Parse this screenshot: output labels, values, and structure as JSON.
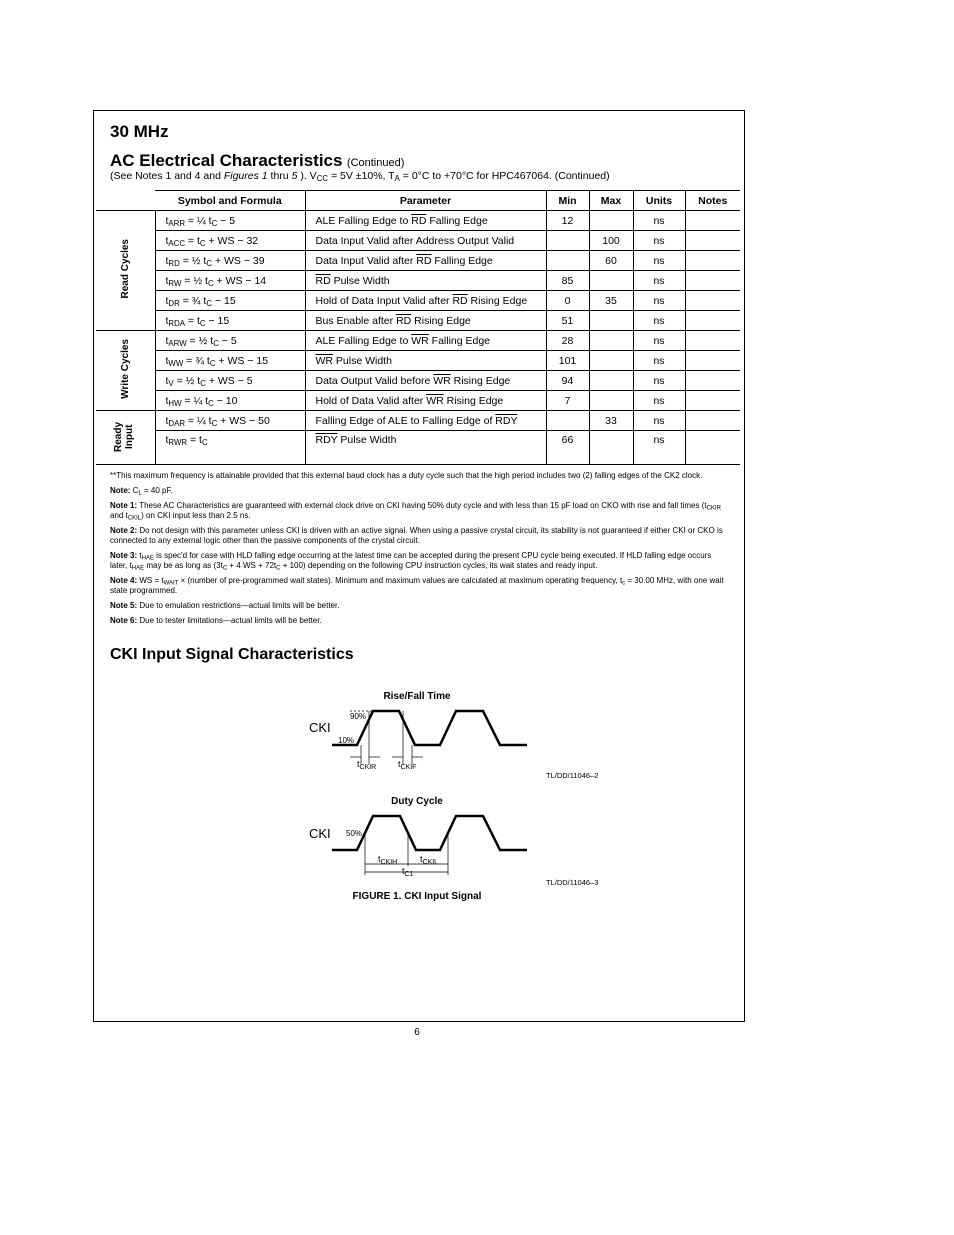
{
  "header": {
    "title": "30 MHz",
    "heading": "AC Electrical Characteristics",
    "continued": "(Continued)",
    "conditions": [
      "(See Notes 1 and 4 and ",
      {
        "i": "Figures 1"
      },
      " thru ",
      {
        "i": "5"
      },
      " ). V",
      {
        "sub": "CC"
      },
      " = 5V ±10%, T",
      {
        "sub": "A"
      },
      " = 0°C to +70°C for HPC467064. (Continued)"
    ]
  },
  "table": {
    "columns": [
      "Symbol and Formula",
      "Parameter",
      "Min",
      "Max",
      "Units",
      "Notes"
    ],
    "groups": [
      {
        "label": "Read Cycles",
        "rows": [
          {
            "symbol": [
              "t",
              {
                "sub": "ARR"
              },
              " = ¼ t",
              {
                "sub": "C"
              },
              " − 5"
            ],
            "parameter": [
              "ALE Falling Edge to ",
              {
                "over": "RD"
              },
              " Falling Edge"
            ],
            "min": 12,
            "units": "ns"
          },
          {
            "symbol": [
              "t",
              {
                "sub": "ACC"
              },
              " = t",
              {
                "sub": "C"
              },
              " + WS − 32"
            ],
            "parameter": [
              "Data Input Valid after Address Output Valid"
            ],
            "max": 100,
            "units": "ns"
          },
          {
            "symbol": [
              "t",
              {
                "sub": "RD"
              },
              " = ½ t",
              {
                "sub": "C"
              },
              " + WS − 39"
            ],
            "parameter": [
              "Data Input Valid after ",
              {
                "over": "RD"
              },
              " Falling Edge"
            ],
            "max": 60,
            "units": "ns"
          },
          {
            "symbol": [
              "t",
              {
                "sub": "RW"
              },
              " = ½ t",
              {
                "sub": "C"
              },
              " + WS − 14"
            ],
            "parameter": [
              {
                "over": "RD"
              },
              " Pulse Width"
            ],
            "min": 85,
            "units": "ns"
          },
          {
            "symbol": [
              "t",
              {
                "sub": "DR"
              },
              " = ¾ t",
              {
                "sub": "C"
              },
              " − 15"
            ],
            "parameter": [
              "Hold of Data Input Valid after ",
              {
                "over": "RD"
              },
              " Rising Edge"
            ],
            "min": 0,
            "max": 35,
            "units": "ns"
          },
          {
            "symbol": [
              "t",
              {
                "sub": "RDA"
              },
              " = t",
              {
                "sub": "C"
              },
              " − 15"
            ],
            "parameter": [
              "Bus Enable after ",
              {
                "over": "RD"
              },
              " Rising Edge"
            ],
            "min": 51,
            "units": "ns"
          }
        ]
      },
      {
        "label": "Write Cycles",
        "rows": [
          {
            "symbol": [
              "t",
              {
                "sub": "ARW"
              },
              " = ½ t",
              {
                "sub": "C"
              },
              " − 5"
            ],
            "parameter": [
              "ALE Falling Edge to ",
              {
                "over": "WR"
              },
              " Falling Edge"
            ],
            "min": 28,
            "units": "ns"
          },
          {
            "symbol": [
              "t",
              {
                "sub": "WW"
              },
              " = ¾ t",
              {
                "sub": "C"
              },
              " + WS − 15"
            ],
            "parameter": [
              {
                "over": "WR"
              },
              " Pulse Width"
            ],
            "min": 101,
            "units": "ns"
          },
          {
            "symbol": [
              "t",
              {
                "sub": "V"
              },
              " = ½ t",
              {
                "sub": "C"
              },
              " + WS − 5"
            ],
            "parameter": [
              "Data Output Valid before ",
              {
                "over": "WR"
              },
              " Rising Edge"
            ],
            "min": 94,
            "units": "ns"
          },
          {
            "symbol": [
              "t",
              {
                "sub": "HW"
              },
              " = ¼ t",
              {
                "sub": "C"
              },
              " − 10"
            ],
            "parameter": [
              "Hold of Data Valid after ",
              {
                "over": "WR"
              },
              " Rising Edge"
            ],
            "min": 7,
            "units": "ns"
          }
        ]
      },
      {
        "label": "Ready Input",
        "rows": [
          {
            "symbol": [
              "t",
              {
                "sub": "DAR"
              },
              " = ¼ t",
              {
                "sub": "C"
              },
              " + WS − 50"
            ],
            "parameter": [
              "Falling Edge of ALE to Falling Edge of ",
              {
                "over": "RDY"
              }
            ],
            "max": 33,
            "units": "ns"
          },
          {
            "symbol": [
              "t",
              {
                "sub": "RWR"
              },
              " = t",
              {
                "sub": "C"
              }
            ],
            "parameter": [
              {
                "over": "RDY"
              },
              " Pulse Width"
            ],
            "min": 66,
            "units": "ns"
          }
        ]
      }
    ]
  },
  "notes": [
    [
      "**This maximum frequency is attainable provided that this external baud clock has a duty cycle such that the high period includes two (2) falling edges of the CK2 clock."
    ],
    [
      {
        "b": "Note:"
      },
      " C",
      {
        "sub": "L"
      },
      " = 40 pF."
    ],
    [
      {
        "b": "Note 1:"
      },
      " These AC Characteristics are guaranteed with external clock drive on CKI having 50% duty cycle and with less than 15 pF load on CKO with rise and fall times (t",
      {
        "sub": "CKIR"
      },
      " and t",
      {
        "sub": "CKIL"
      },
      ") on CKI input less than 2.5 ns."
    ],
    [
      {
        "b": "Note 2:"
      },
      " Do not design with this parameter unless CKI is driven with an active signal. When using a passive crystal circuit, its stability is not guaranteed if either CKI or CKO is connected to any external logic other than the passive components of the crystal circuit."
    ],
    [
      {
        "b": "Note 3:"
      },
      " t",
      {
        "sub": "HAE"
      },
      " is spec'd for case with HLD falling edge occurring at the latest time can be accepted during the present CPU cycle being executed. If HLD falling edge occurs later, t",
      {
        "sub": "HAE"
      },
      " may be as long as (3t",
      {
        "sub": "C"
      },
      " + 4 WS + 72t",
      {
        "sub": "C"
      },
      " + 100) depending on the following CPU instruction cycles, its wait states and ready input."
    ],
    [
      {
        "b": "Note 4:"
      },
      " WS = t",
      {
        "sub": "WAIT"
      },
      " × (number of pre-programmed wait states). Minimum and maximum values are calculated at maximum operating frequency, t",
      {
        "sub": "c"
      },
      " = 30.00 MHz, with one wait state programmed."
    ],
    [
      {
        "b": "Note 5:"
      },
      " Due to emulation restrictions—actual limits will be better."
    ],
    [
      {
        "b": "Note 6:"
      },
      " Due to tester limitations—actual limits will be better."
    ]
  ],
  "section": {
    "title": "CKI Input Signal Characteristics"
  },
  "figure": {
    "rise_fall": {
      "title": "Rise/Fall Time",
      "signal": "CKI",
      "level_high": "90%",
      "level_low": "10%",
      "t_rise": {
        "t": "t",
        "sub": "CKIR"
      },
      "t_fall": {
        "t": "t",
        "sub": "CKIF"
      },
      "ref": "TL/DD/11046–2"
    },
    "duty": {
      "title": "Duty Cycle",
      "signal": "CKI",
      "level": "50%",
      "t_high": {
        "t": "t",
        "sub": "CKIH"
      },
      "t_low": {
        "t": "t",
        "sub": "CKIL"
      },
      "t_cycle": {
        "t": "t",
        "sub": "C1"
      },
      "ref": "TL/DD/11046–3"
    },
    "caption": "FIGURE 1. CKI Input Signal"
  },
  "page_number": "6"
}
